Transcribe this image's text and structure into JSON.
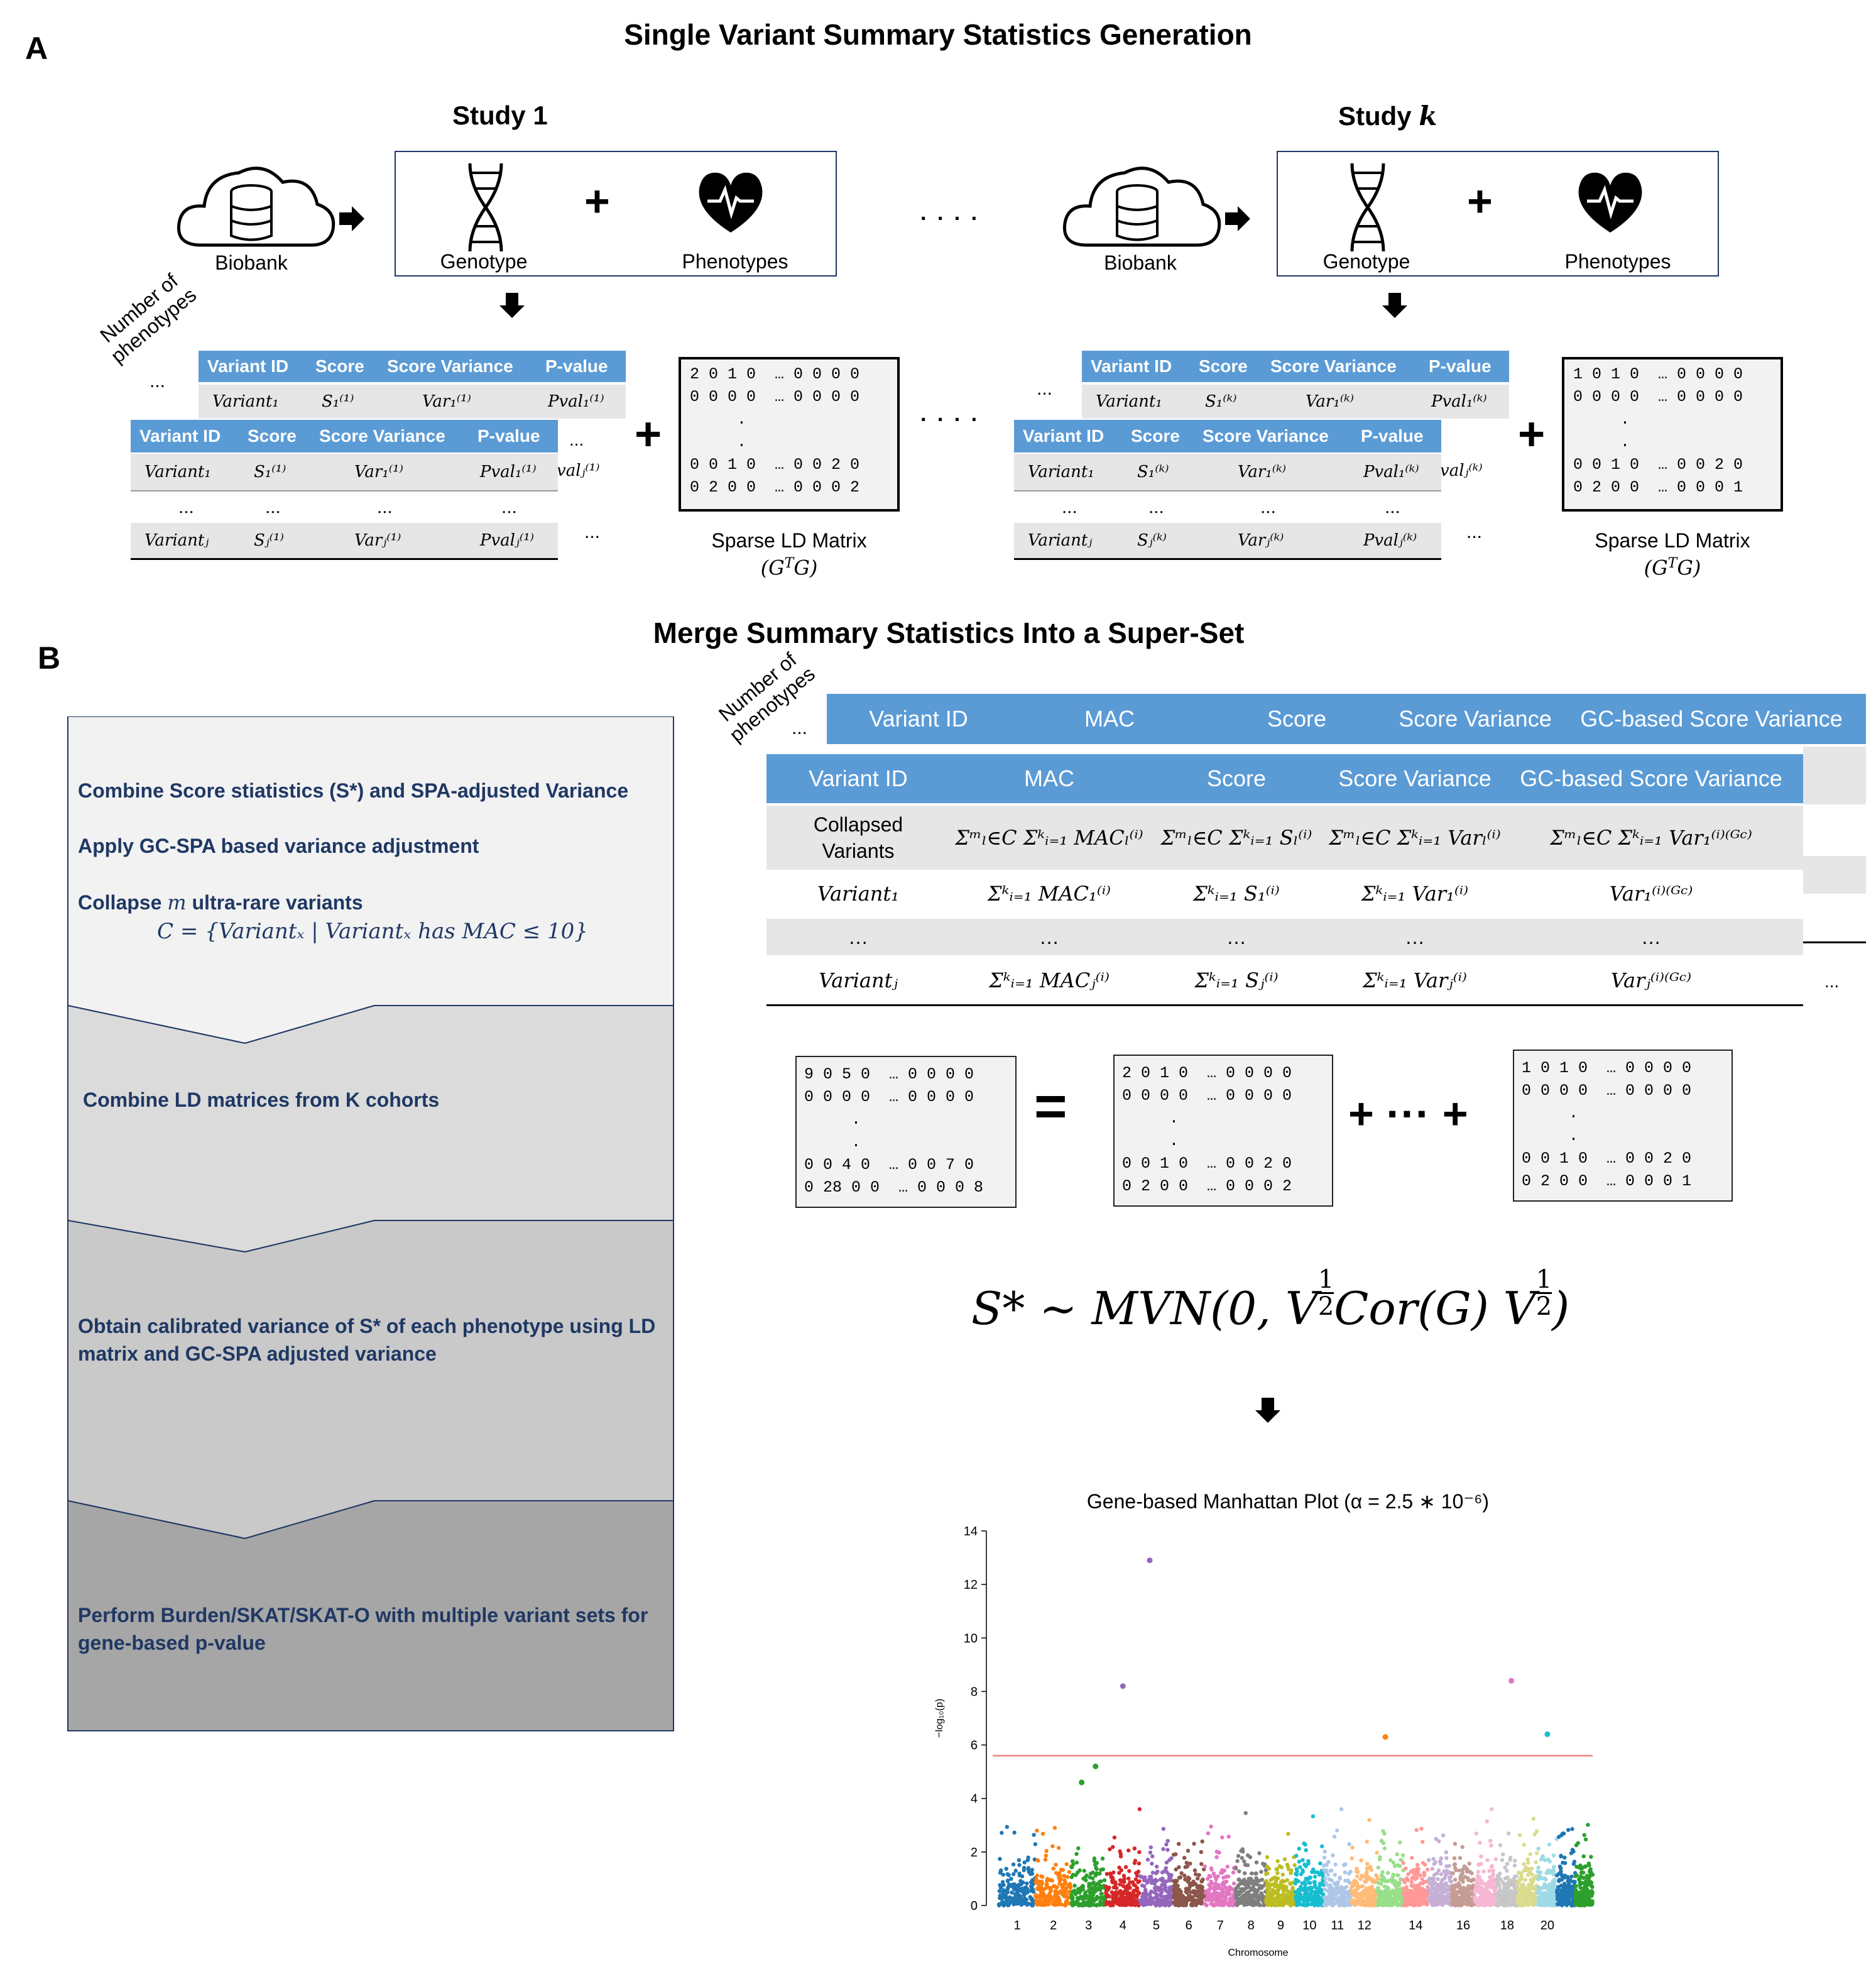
{
  "panels": {
    "a": "A",
    "b": "B"
  },
  "section_a": {
    "title": "Single Variant Summary Statistics Generation"
  },
  "section_b": {
    "title": "Merge Summary Statistics Into a Super-Set"
  },
  "study1": {
    "title": "Study 1"
  },
  "studyk": {
    "title_prefix": "Study ",
    "title_var": "k"
  },
  "labels": {
    "biobank": "Biobank",
    "genotype": "Genotype",
    "phenotypes": "Phenotypes",
    "plus": "+",
    "dots": ". . . .",
    "number_of_phenotypes": "Number of phenotypes",
    "sparse_ld": "Sparse LD Matrix",
    "gtg": "(G",
    "gtg_sup": "T",
    "gtg_end": "G)"
  },
  "small_table": {
    "headers": [
      "Variant ID",
      "Score",
      "Score Variance",
      "P-value"
    ],
    "row_ellipsis": "..."
  },
  "study1_rows": {
    "variant1": "Variant₁",
    "s1": "S₁⁽¹⁾",
    "var1": "Var₁⁽¹⁾",
    "pval1": "Pval₁⁽¹⁾",
    "variantj": "Variantⱼ",
    "sj": "Sⱼ⁽¹⁾",
    "varj": "Varⱼ⁽¹⁾",
    "pvalj": "Pvalⱼ⁽¹⁾",
    "valj": "valⱼ⁽¹⁾"
  },
  "studyk_rows": {
    "variant1": "Variant₁",
    "s1": "S₁⁽ᵏ⁾",
    "var1": "Var₁⁽ᵏ⁾",
    "pval1": "Pval₁⁽ᵏ⁾",
    "variantj": "Variantⱼ",
    "sj": "Sⱼ⁽ᵏ⁾",
    "varj": "Varⱼ⁽ᵏ⁾",
    "pvalj": "Pvalⱼ⁽ᵏ⁾",
    "valj": "valⱼ⁽ᵏ⁾"
  },
  "matrices": {
    "study1": "2 0 1 0  … 0 0 0 0\n0 0 0 0  … 0 0 0 0\n     .\n     .\n0 0 1 0  … 0 0 2 0\n0 2 0 0  … 0 0 0 2",
    "studyk": "1 0 1 0  … 0 0 0 0\n0 0 0 0  … 0 0 0 0\n     .\n     .\n0 0 1 0  … 0 0 2 0\n0 2 0 0  … 0 0 0 1",
    "merged": "9 0 5 0  … 0 0 0 0\n0 0 0 0  … 0 0 0 0\n     .\n     .\n0 0 4 0  … 0 0 7 0\n0 28 0 0  … 0 0 0 8",
    "b_mid": "2 0 1 0  … 0 0 0 0\n0 0 0 0  … 0 0 0 0\n     .\n     .\n0 0 1 0  … 0 0 2 0\n0 2 0 0  … 0 0 0 2",
    "b_right": "1 0 1 0  … 0 0 0 0\n0 0 0 0  … 0 0 0 0\n     .\n     .\n0 0 1 0  … 0 0 2 0\n0 2 0 0  … 0 0 0 1"
  },
  "equals": "=",
  "plus_dots_plus": "+ ··· +",
  "flow": {
    "step1_line1": "Combine Score stiatistics (S*) and SPA-adjusted Variance",
    "step1_line2": "Apply GC-SPA based variance adjustment",
    "step1_line3_pre": "Collapse ",
    "step1_line3_var": "m",
    "step1_line3_post": " ultra-rare variants",
    "step1_formula": "C = {Variantₓ | Variantₓ has MAC ≤ 10}",
    "step2": "Combine LD matrices from K cohorts",
    "step3": "Obtain calibrated variance of S* of each phenotype using LD matrix and GC-SPA adjusted variance",
    "step4": "Perform Burden/SKAT/SKAT-O with multiple variant sets for gene-based p-value"
  },
  "big_table": {
    "headers": [
      "Variant ID",
      "MAC",
      "Score",
      "Score Variance",
      "GC-based Score Variance"
    ],
    "collapsed_label_1": "Collapsed",
    "collapsed_label_2": "Variants",
    "collapsed": [
      "Σᵐₗ∈C Σᵏᵢ₌₁ MACₗ⁽ⁱ⁾",
      "Σᵐₗ∈C Σᵏᵢ₌₁ Sₗ⁽ⁱ⁾",
      "Σᵐₗ∈C Σᵏᵢ₌₁ Varₗ⁽ⁱ⁾",
      "Σᵐₗ∈C Σᵏᵢ₌₁ Var₁⁽ⁱ⁾⁽ᴳᶜ⁾"
    ],
    "row1": [
      "Variant₁",
      "Σᵏᵢ₌₁ MAC₁⁽ⁱ⁾",
      "Σᵏᵢ₌₁ S₁⁽ⁱ⁾",
      "Σᵏᵢ₌₁ Var₁⁽ⁱ⁾",
      "Var₁⁽ⁱ⁾⁽ᴳᶜ⁾"
    ],
    "rowdots": [
      "…",
      "…",
      "…",
      "…",
      "…"
    ],
    "rowj": [
      "Variantⱼ",
      "Σᵏᵢ₌₁ MACⱼ⁽ⁱ⁾",
      "Σᵏᵢ₌₁ Sⱼ⁽ⁱ⁾",
      "Σᵏᵢ₌₁ Varⱼ⁽ⁱ⁾",
      "Varⱼ⁽ⁱ⁾⁽ᴳᶜ⁾"
    ]
  },
  "mvn": {
    "lhs": "S* ~ MVN(0, V",
    "mid": " Cor(G) V",
    "end": ")",
    "half": "1",
    "half_den": "2"
  },
  "chart_data": {
    "type": "scatter",
    "title": "Gene-based Manhattan Plot (α = 2.5 ∗ 10⁻⁶)",
    "xlabel": "Chromosome",
    "ylabel": "−log₁₀(p)",
    "ylim": [
      0,
      14
    ],
    "yticks": [
      "0",
      "2",
      "4",
      "6",
      "8",
      "10",
      "12",
      "14"
    ],
    "xticks": [
      "1",
      "2",
      "3",
      "4",
      "5",
      "6",
      "7",
      "8",
      "9",
      "10",
      "11",
      "12",
      "14",
      "16",
      "18",
      "20"
    ],
    "threshold": 5.6,
    "threshold_color": "#f08080",
    "highlight_points": [
      {
        "chrom": "5",
        "y": 12.9,
        "color": "#9467bd"
      },
      {
        "chrom": "4",
        "y": 8.2,
        "color": "#9467bd"
      },
      {
        "chrom": "18",
        "y": 8.4,
        "color": "#e377c2"
      },
      {
        "chrom": "13",
        "y": 6.3,
        "color": "#ff7f0e"
      },
      {
        "chrom": "20",
        "y": 6.4,
        "color": "#17becf"
      },
      {
        "chrom": "3",
        "y": 5.2,
        "color": "#2ca02c"
      },
      {
        "chrom": "3",
        "y": 4.6,
        "color": "#2ca02c"
      }
    ]
  }
}
